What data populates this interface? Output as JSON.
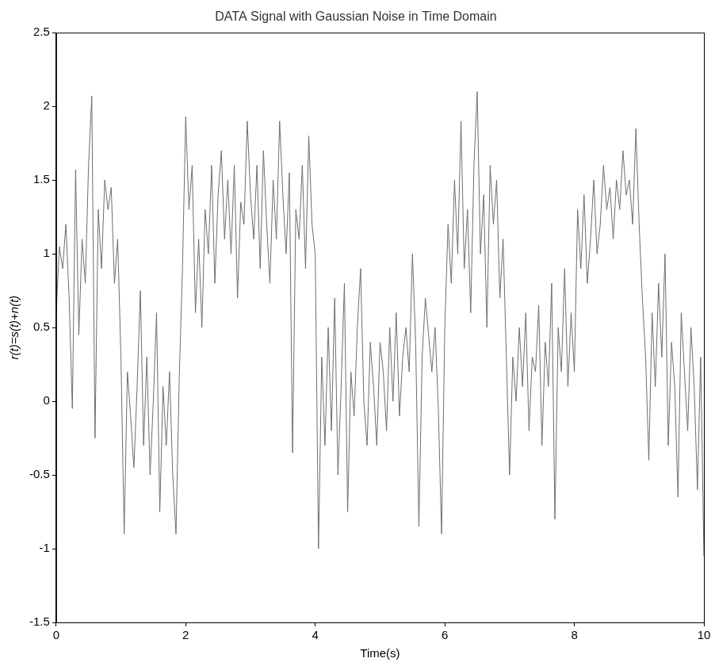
{
  "chart_data": {
    "type": "line",
    "title": "DATA Signal with Gaussian Noise in Time Domain",
    "x_label": "Time(s)",
    "y_label": "r(t)=s(t)+n(t)",
    "color": "#6e6e6e",
    "grid": false,
    "xlim": [
      0,
      10
    ],
    "xticks": [
      0,
      2,
      4,
      6,
      8,
      10
    ],
    "ylim": [
      -1.5,
      2.5
    ],
    "yticks": [
      -1.5,
      -1,
      -0.5,
      0,
      0.5,
      1,
      1.5,
      2,
      2.5
    ],
    "x": [
      0,
      0.05,
      0.1,
      0.15,
      0.2,
      0.25,
      0.3,
      0.35,
      0.4,
      0.45,
      0.5,
      0.55,
      0.6,
      0.65,
      0.7,
      0.75,
      0.8,
      0.85,
      0.9,
      0.95,
      1,
      1.05,
      1.1,
      1.15,
      1.2,
      1.25,
      1.3,
      1.35,
      1.4,
      1.45,
      1.5,
      1.55,
      1.6,
      1.65,
      1.7,
      1.75,
      1.8,
      1.85,
      1.9,
      1.95,
      2,
      2.05,
      2.1,
      2.15,
      2.2,
      2.25,
      2.3,
      2.35,
      2.4,
      2.45,
      2.5,
      2.55,
      2.6,
      2.65,
      2.7,
      2.75,
      2.8,
      2.85,
      2.9,
      2.95,
      3,
      3.05,
      3.1,
      3.15,
      3.2,
      3.25,
      3.3,
      3.35,
      3.4,
      3.45,
      3.5,
      3.55,
      3.6,
      3.65,
      3.7,
      3.75,
      3.8,
      3.85,
      3.9,
      3.95,
      4,
      4.05,
      4.1,
      4.15,
      4.2,
      4.25,
      4.3,
      4.35,
      4.4,
      4.45,
      4.5,
      4.55,
      4.6,
      4.65,
      4.7,
      4.75,
      4.8,
      4.85,
      4.9,
      4.95,
      5,
      5.05,
      5.1,
      5.15,
      5.2,
      5.25,
      5.3,
      5.35,
      5.4,
      5.45,
      5.5,
      5.55,
      5.6,
      5.65,
      5.7,
      5.75,
      5.8,
      5.85,
      5.9,
      5.95,
      6,
      6.05,
      6.1,
      6.15,
      6.2,
      6.25,
      6.3,
      6.35,
      6.4,
      6.45,
      6.5,
      6.55,
      6.6,
      6.65,
      6.7,
      6.75,
      6.8,
      6.85,
      6.9,
      6.95,
      7,
      7.05,
      7.1,
      7.15,
      7.2,
      7.25,
      7.3,
      7.35,
      7.4,
      7.45,
      7.5,
      7.55,
      7.6,
      7.65,
      7.7,
      7.75,
      7.8,
      7.85,
      7.9,
      7.95,
      8,
      8.05,
      8.1,
      8.15,
      8.2,
      8.25,
      8.3,
      8.35,
      8.4,
      8.45,
      8.5,
      8.55,
      8.6,
      8.65,
      8.7,
      8.75,
      8.8,
      8.85,
      8.9,
      8.95,
      9,
      9.05,
      9.1,
      9.15,
      9.2,
      9.25,
      9.3,
      9.35,
      9.4,
      9.45,
      9.5,
      9.55,
      9.6,
      9.65,
      9.7,
      9.75,
      9.8,
      9.85,
      9.9,
      9.95,
      10
    ],
    "values": [
      0.6,
      1.05,
      0.9,
      1.2,
      0.7,
      -0.05,
      1.57,
      0.45,
      1.1,
      0.8,
      1.6,
      2.07,
      -0.25,
      1.3,
      0.9,
      1.5,
      1.3,
      1.45,
      0.8,
      1.1,
      0.3,
      -0.9,
      0.2,
      -0.1,
      -0.45,
      0.1,
      0.75,
      -0.3,
      0.3,
      -0.5,
      0.0,
      0.6,
      -0.75,
      0.1,
      -0.3,
      0.2,
      -0.5,
      -0.9,
      0.15,
      0.9,
      1.93,
      1.3,
      1.6,
      0.6,
      1.1,
      0.5,
      1.3,
      1.0,
      1.6,
      0.8,
      1.4,
      1.7,
      1.1,
      1.5,
      1.0,
      1.6,
      0.7,
      1.35,
      1.2,
      1.9,
      1.4,
      1.1,
      1.6,
      0.9,
      1.7,
      1.2,
      0.8,
      1.5,
      1.1,
      1.9,
      1.4,
      1.0,
      1.55,
      -0.35,
      1.3,
      1.1,
      1.6,
      0.9,
      1.8,
      1.2,
      1.0,
      -1.0,
      0.3,
      -0.3,
      0.5,
      -0.2,
      0.7,
      -0.5,
      0.1,
      0.8,
      -0.75,
      0.2,
      -0.1,
      0.5,
      0.9,
      0.0,
      -0.3,
      0.4,
      0.1,
      -0.3,
      0.4,
      0.2,
      -0.2,
      0.5,
      0.0,
      0.6,
      -0.1,
      0.3,
      0.5,
      0.2,
      1.0,
      0.4,
      -0.85,
      0.3,
      0.7,
      0.45,
      0.2,
      0.5,
      -0.05,
      -0.9,
      0.5,
      1.2,
      0.8,
      1.5,
      1.0,
      1.9,
      0.9,
      1.3,
      0.6,
      1.6,
      2.1,
      1.0,
      1.4,
      0.5,
      1.6,
      1.2,
      1.5,
      0.7,
      1.1,
      0.3,
      -0.5,
      0.3,
      0.0,
      0.5,
      0.1,
      0.6,
      -0.2,
      0.3,
      0.2,
      0.65,
      -0.3,
      0.4,
      0.1,
      0.8,
      -0.8,
      0.5,
      0.2,
      0.9,
      0.1,
      0.6,
      0.2,
      1.3,
      0.9,
      1.4,
      0.8,
      1.1,
      1.5,
      1.0,
      1.2,
      1.6,
      1.3,
      1.45,
      1.1,
      1.5,
      1.3,
      1.7,
      1.4,
      1.5,
      1.2,
      1.85,
      1.2,
      0.7,
      0.3,
      -0.4,
      0.6,
      0.1,
      0.8,
      0.3,
      1.0,
      -0.3,
      0.4,
      0.1,
      -0.65,
      0.6,
      0.2,
      -0.2,
      0.5,
      0.1,
      -0.6,
      0.3,
      -1.05
    ]
  }
}
